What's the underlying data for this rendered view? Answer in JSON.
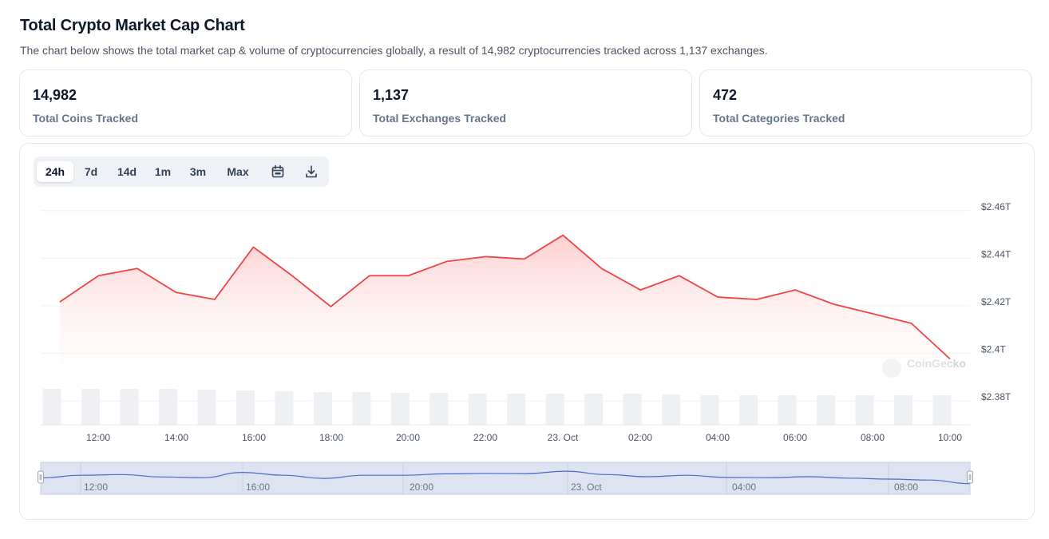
{
  "header": {
    "title": "Total Crypto Market Cap Chart",
    "subtitle": "The chart below shows the total market cap & volume of cryptocurrencies globally, a result of 14,982 cryptocurrencies tracked across 1,137 exchanges."
  },
  "stats": [
    {
      "value": "14,982",
      "label": "Total Coins Tracked"
    },
    {
      "value": "1,137",
      "label": "Total Exchanges Tracked"
    },
    {
      "value": "472",
      "label": "Total Categories Tracked"
    }
  ],
  "range_tabs": [
    "24h",
    "7d",
    "14d",
    "1m",
    "3m",
    "Max"
  ],
  "active_tab": "24h",
  "toolbar_icons": [
    "calendar-icon",
    "download-icon"
  ],
  "watermark": "CoinGecko",
  "colors": {
    "line": "#ef4444",
    "area_top": "#fecaca",
    "volume_bar": "#eef0f3",
    "navigator_fill": "#dde3f0",
    "navigator_line": "#4a6cc4"
  },
  "chart_data": {
    "type": "area",
    "ylim": [
      2.37,
      2.47
    ],
    "yticks": [
      "$2.46T",
      "$2.44T",
      "$2.42T",
      "$2.4T",
      "$2.38T"
    ],
    "xticks": [
      "12:00",
      "14:00",
      "16:00",
      "18:00",
      "20:00",
      "22:00",
      "23. Oct",
      "02:00",
      "04:00",
      "06:00",
      "08:00",
      "10:00"
    ],
    "grid": true,
    "series": [
      {
        "unit": "T USD",
        "values": [
          2.42,
          2.431,
          2.434,
          2.424,
          2.421,
          2.443,
          2.431,
          2.418,
          2.431,
          2.431,
          2.437,
          2.439,
          2.438,
          2.448,
          2.434,
          2.425,
          2.431,
          2.422,
          2.421,
          2.425,
          2.419,
          2.415,
          2.411,
          2.396
        ]
      }
    ],
    "volume_bars": [
      0.9,
      0.9,
      0.9,
      0.9,
      0.88,
      0.86,
      0.84,
      0.82,
      0.82,
      0.8,
      0.8,
      0.78,
      0.78,
      0.78,
      0.78,
      0.78,
      0.76,
      0.74,
      0.74,
      0.74,
      0.74,
      0.74,
      0.74,
      0.74
    ],
    "navigator": {
      "labels": [
        "12:00",
        "16:00",
        "20:00",
        "23. Oct",
        "04:00",
        "08:00"
      ]
    }
  }
}
